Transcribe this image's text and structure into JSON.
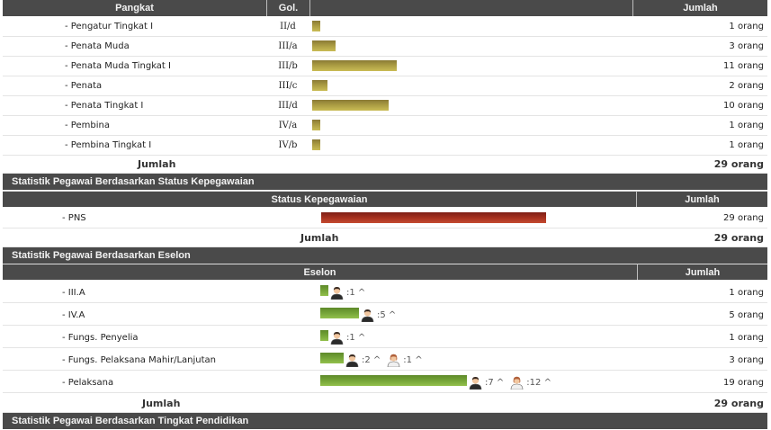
{
  "pangkat_table": {
    "headers": {
      "pangkat": "Pangkat",
      "gol": "Gol.",
      "bar": "",
      "jumlah": "Jumlah"
    },
    "bar_color": "#b0a245",
    "rows": [
      {
        "label": "- Pengatur Tingkat I",
        "gol": "II/d",
        "count": 1,
        "jumlah": "1 orang"
      },
      {
        "label": "- Penata Muda",
        "gol": "III/a",
        "count": 3,
        "jumlah": "3 orang"
      },
      {
        "label": "- Penata Muda Tingkat I",
        "gol": "III/b",
        "count": 11,
        "jumlah": "11 orang"
      },
      {
        "label": "- Penata",
        "gol": "III/c",
        "count": 2,
        "jumlah": "2 orang"
      },
      {
        "label": "- Penata Tingkat I",
        "gol": "III/d",
        "count": 10,
        "jumlah": "10 orang"
      },
      {
        "label": "- Pembina",
        "gol": "IV/a",
        "count": 1,
        "jumlah": "1 orang"
      },
      {
        "label": "- Pembina Tingkat I",
        "gol": "IV/b",
        "count": 1,
        "jumlah": "1 orang"
      }
    ],
    "total_label": "Jumlah",
    "total_value": "29 orang"
  },
  "status_section": {
    "title": "Statistik Pegawai Berdasarkan Status Kepegawaian",
    "headers": {
      "status": "Status Kepegawaian",
      "jumlah": "Jumlah"
    },
    "bar_color": "#a5301f",
    "rows": [
      {
        "label": "- PNS",
        "count": 29,
        "jumlah": "29 orang"
      }
    ],
    "total_label": "Jumlah",
    "total_value": "29 orang"
  },
  "eselon_section": {
    "title": "Statistik Pegawai Berdasarkan Eselon",
    "headers": {
      "eselon": "Eselon",
      "jumlah": "Jumlah"
    },
    "bar_color": "#75a438",
    "rows": [
      {
        "label": "- III.A",
        "count": 1,
        "jumlah": "1 orang",
        "genders": [
          {
            "icon": "male-person-icon",
            "text": ":1 ^"
          }
        ]
      },
      {
        "label": "- IV.A",
        "count": 5,
        "jumlah": "5 orang",
        "genders": [
          {
            "icon": "male-person-icon",
            "text": ":5 ^"
          }
        ]
      },
      {
        "label": "- Fungs. Penyelia",
        "count": 1,
        "jumlah": "1 orang",
        "genders": [
          {
            "icon": "male-person-icon",
            "text": ":1 ^"
          }
        ]
      },
      {
        "label": "- Fungs. Pelaksana Mahir/Lanjutan",
        "count": 3,
        "jumlah": "3 orang",
        "genders": [
          {
            "icon": "male-person-icon",
            "text": ":2 ^"
          },
          {
            "icon": "female-person-icon",
            "text": ":1 ^"
          }
        ]
      },
      {
        "label": "- Pelaksana",
        "count": 19,
        "jumlah": "19 orang",
        "genders": [
          {
            "icon": "male-person-icon",
            "text": ":7 ^"
          },
          {
            "icon": "female-person-icon",
            "text": ":12 ^"
          }
        ]
      }
    ],
    "total_label": "Jumlah",
    "total_value": "29 orang"
  },
  "pendidikan_section": {
    "title": "Statistik Pegawai Berdasarkan Tingkat Pendidikan"
  }
}
